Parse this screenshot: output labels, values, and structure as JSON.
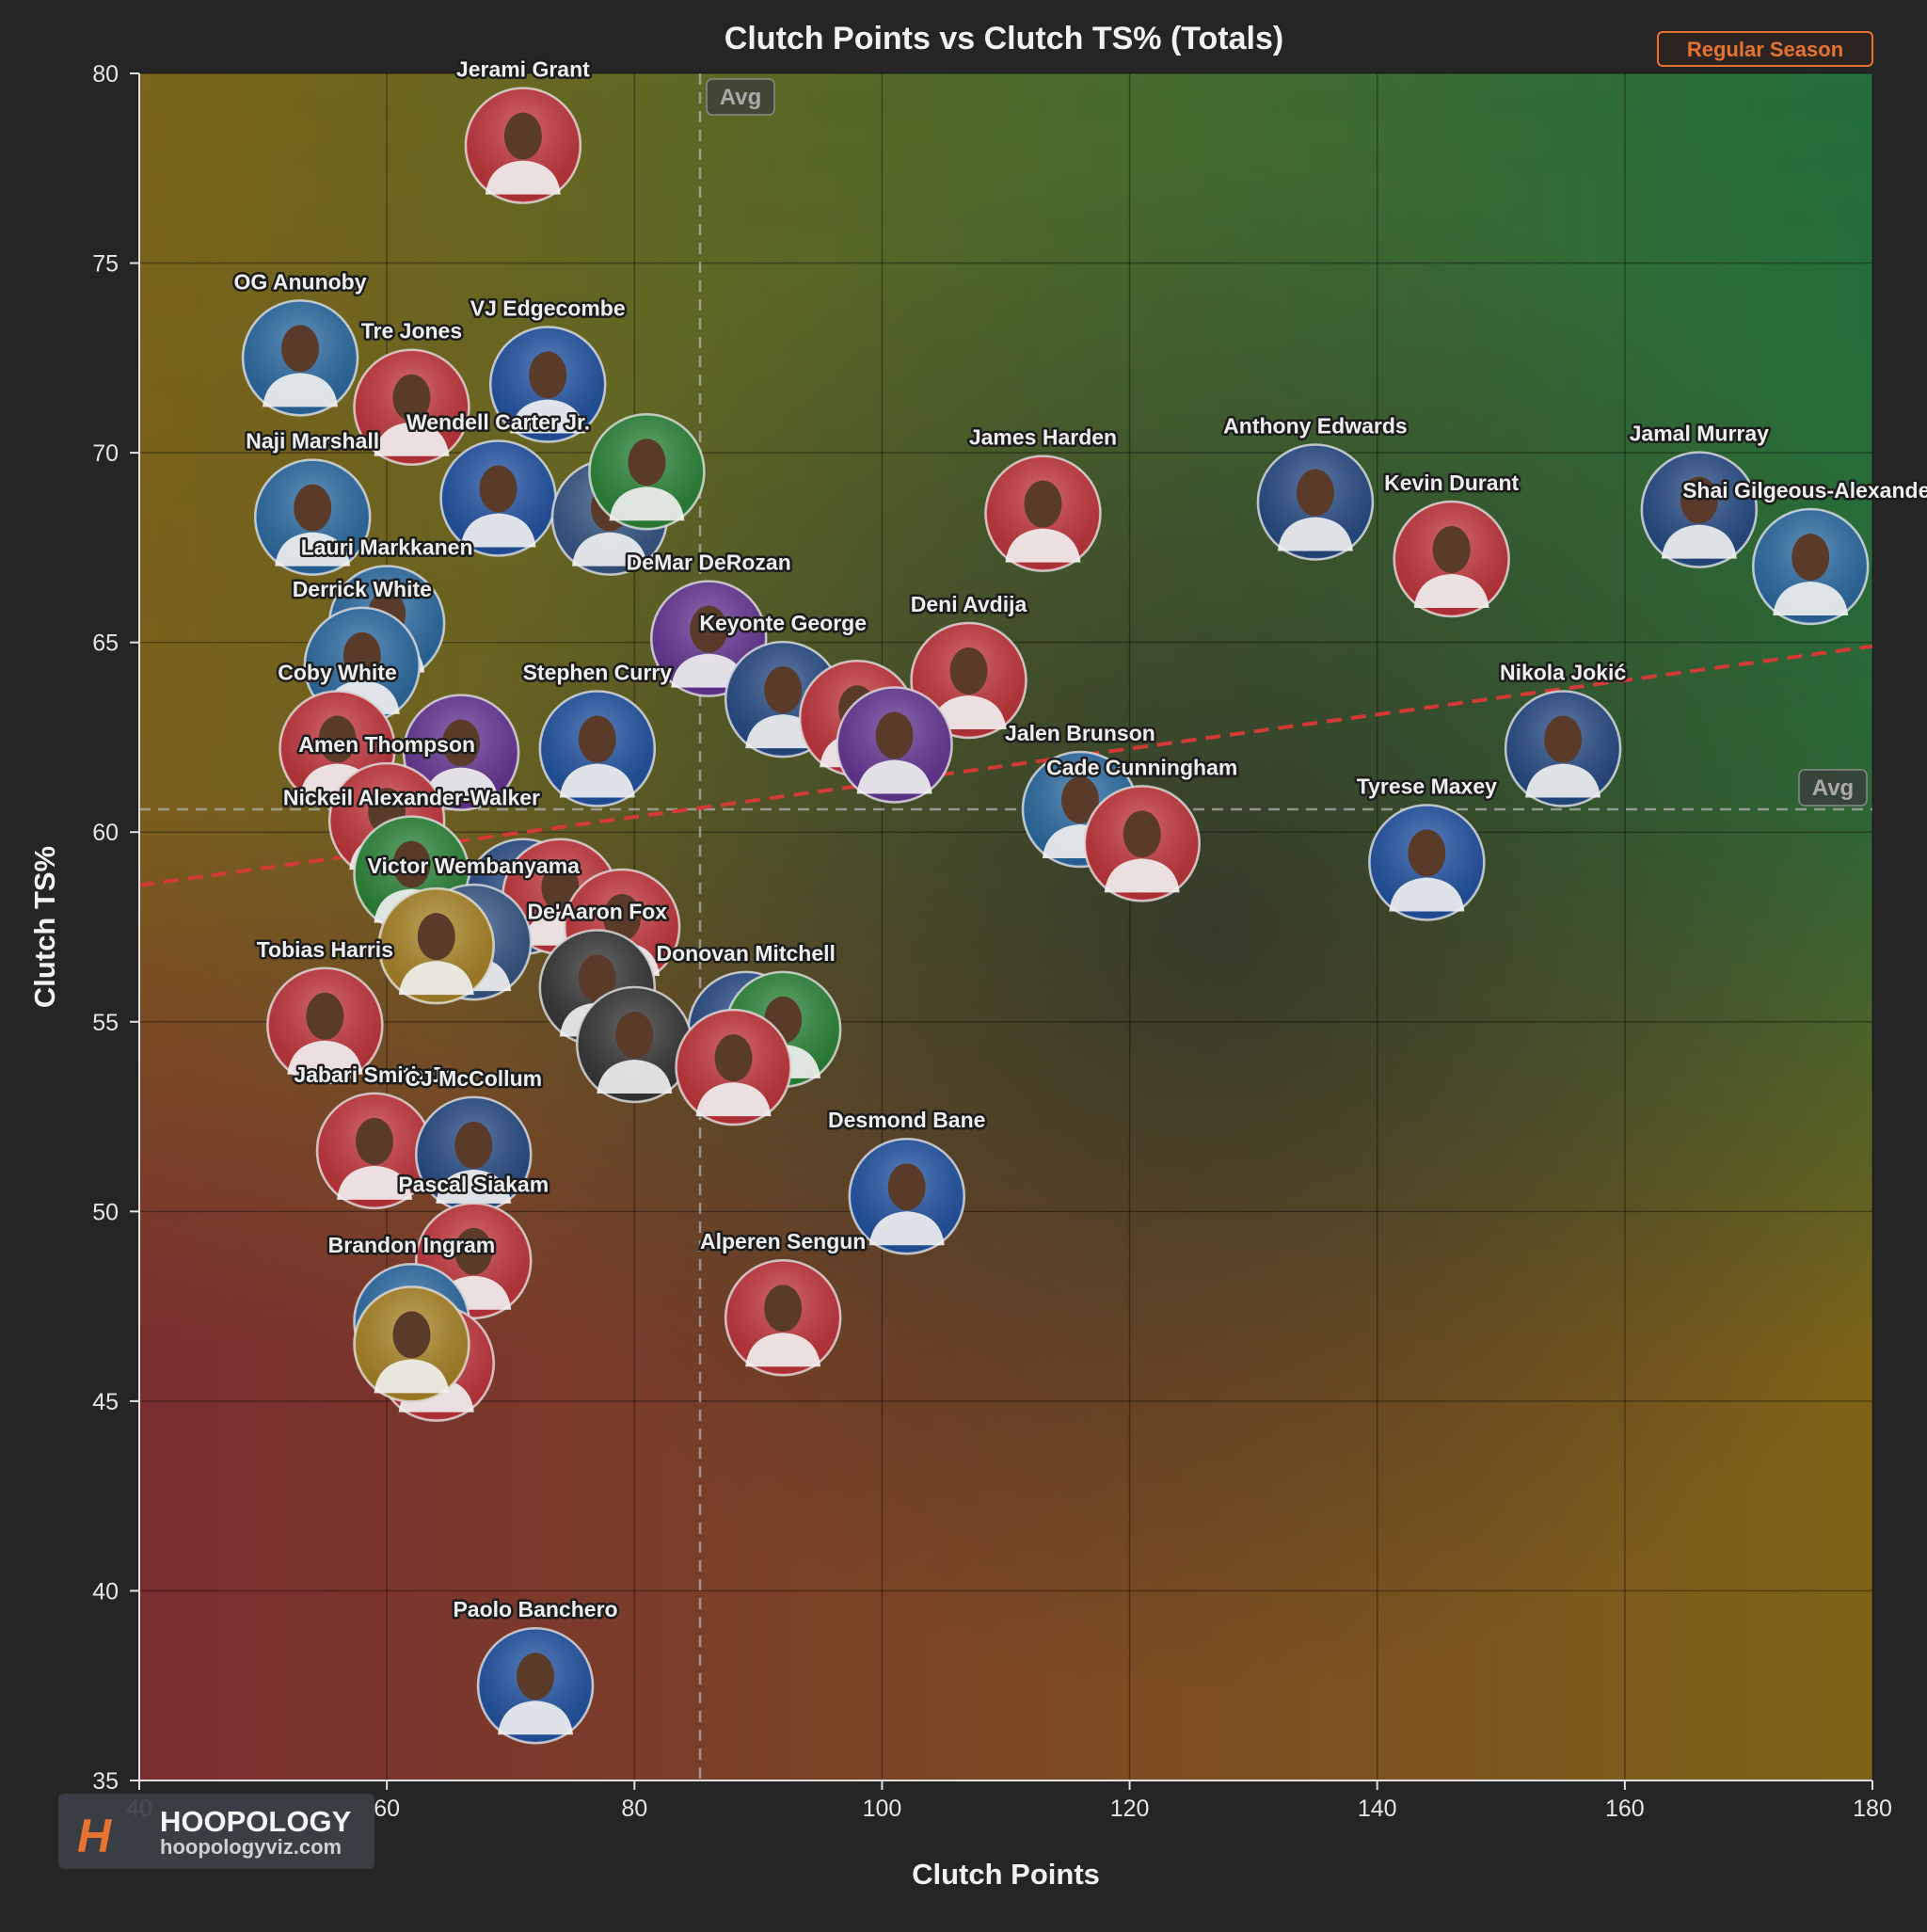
{
  "chart_data": {
    "type": "scatter",
    "title": "Clutch Points vs Clutch TS% (Totals)",
    "xlabel": "Clutch Points",
    "ylabel": "Clutch TS%",
    "xlim": [
      40,
      180
    ],
    "ylim": [
      35,
      80
    ],
    "xticks": [
      "40",
      "60",
      "80",
      "100",
      "120",
      "140",
      "160",
      "180"
    ],
    "yticks": [
      "35",
      "40",
      "45",
      "50",
      "55",
      "60",
      "65",
      "70",
      "75",
      "80"
    ],
    "grid": true,
    "season_filter": "Regular Season",
    "avg_label": "Avg",
    "avg_x": 85.3,
    "avg_y": 60.6,
    "trendline": {
      "x": [
        40,
        180
      ],
      "y": [
        58.6,
        64.9
      ]
    },
    "points": [
      {
        "name": "Jerami Grant",
        "x": 71,
        "y": 78.1,
        "color": "#c8393f"
      },
      {
        "name": "OG Anunoby",
        "x": 53,
        "y": 72.5,
        "color": "#2f6fa8"
      },
      {
        "name": "Tre Jones",
        "x": 62,
        "y": 71.2,
        "color": "#c8393f"
      },
      {
        "name": "VJ Edgecombe",
        "x": 73,
        "y": 71.8,
        "color": "#2557a8"
      },
      {
        "name": "Wendell Carter Jr.",
        "x": 69,
        "y": 68.8,
        "color": "#2557a8"
      },
      {
        "name": "",
        "x": 78,
        "y": 68.3,
        "color": "#3a5a8a"
      },
      {
        "name": "",
        "x": 81,
        "y": 69.5,
        "color": "#2f8a3c"
      },
      {
        "name": "Naji Marshall",
        "x": 54,
        "y": 68.3,
        "color": "#2f6fa8"
      },
      {
        "name": "Anthony Edwards",
        "x": 135,
        "y": 68.7,
        "color": "#2a4f8a"
      },
      {
        "name": "James Harden",
        "x": 113,
        "y": 68.4,
        "color": "#c8393f"
      },
      {
        "name": "Kevin Durant",
        "x": 146,
        "y": 67.2,
        "color": "#c8393f"
      },
      {
        "name": "Jamal Murray",
        "x": 166,
        "y": 68.5,
        "color": "#2a4f8a"
      },
      {
        "name": "Shai Gilgeous-Alexander",
        "x": 175,
        "y": 67.0,
        "color": "#2f6fa8"
      },
      {
        "name": "DeMar DeRozan",
        "x": 86,
        "y": 65.1,
        "color": "#6a3a9a"
      },
      {
        "name": "Lauri Markkanen",
        "x": 60,
        "y": 65.5,
        "color": "#2f6fa8"
      },
      {
        "name": "Derrick White",
        "x": 58,
        "y": 64.4,
        "color": "#2f6fa8"
      },
      {
        "name": "Deni Avdija",
        "x": 107,
        "y": 64.0,
        "color": "#c8393f"
      },
      {
        "name": "Keyonte George",
        "x": 92,
        "y": 63.5,
        "color": "#2a4f8a"
      },
      {
        "name": "",
        "x": 98,
        "y": 63.0,
        "color": "#c8393f"
      },
      {
        "name": "",
        "x": 101,
        "y": 62.3,
        "color": "#6a3a9a"
      },
      {
        "name": "Stephen Curry",
        "x": 77,
        "y": 62.2,
        "color": "#2557a8"
      },
      {
        "name": "Coby White",
        "x": 56,
        "y": 62.2,
        "color": "#c8393f"
      },
      {
        "name": "",
        "x": 66,
        "y": 62.1,
        "color": "#6a3a9a"
      },
      {
        "name": "Nikola Jokić",
        "x": 155,
        "y": 62.2,
        "color": "#2a4f8a"
      },
      {
        "name": "Jalen Brunson",
        "x": 116,
        "y": 60.6,
        "color": "#2f6fa8"
      },
      {
        "name": "Cade Cunningham",
        "x": 121,
        "y": 59.7,
        "color": "#c8393f"
      },
      {
        "name": "Amen Thompson",
        "x": 60,
        "y": 60.3,
        "color": "#c8393f"
      },
      {
        "name": "Tyrese Maxey",
        "x": 144,
        "y": 59.2,
        "color": "#2557a8"
      },
      {
        "name": "Nickeil Alexander-Walker",
        "x": 62,
        "y": 58.9,
        "color": "#2f8a3c"
      },
      {
        "name": "",
        "x": 71,
        "y": 58.3,
        "color": "#2a4f8a"
      },
      {
        "name": "",
        "x": 74,
        "y": 58.3,
        "color": "#c8393f"
      },
      {
        "name": "Victor Wembanyama",
        "x": 67,
        "y": 57.1,
        "color": "#3a5a8a"
      },
      {
        "name": "",
        "x": 64,
        "y": 57.0,
        "color": "#b08a2a"
      },
      {
        "name": "",
        "x": 79,
        "y": 57.5,
        "color": "#c8393f"
      },
      {
        "name": "De'Aaron Fox",
        "x": 77,
        "y": 55.9,
        "color": "#3a3a3a"
      },
      {
        "name": "Tobias Harris",
        "x": 55,
        "y": 54.9,
        "color": "#c8393f"
      },
      {
        "name": "Donovan Mitchell",
        "x": 89,
        "y": 54.8,
        "color": "#2a4f8a"
      },
      {
        "name": "",
        "x": 92,
        "y": 54.8,
        "color": "#2f8a3c"
      },
      {
        "name": "",
        "x": 80,
        "y": 54.4,
        "color": "#3a3a3a"
      },
      {
        "name": "",
        "x": 88,
        "y": 53.8,
        "color": "#c8393f"
      },
      {
        "name": "Jabari Smith Jr.",
        "x": 59,
        "y": 51.6,
        "color": "#c8393f"
      },
      {
        "name": "CJ McCollum",
        "x": 67,
        "y": 51.5,
        "color": "#2a4f8a"
      },
      {
        "name": "Desmond Bane",
        "x": 102,
        "y": 50.4,
        "color": "#2557a8"
      },
      {
        "name": "Pascal Siakam",
        "x": 67,
        "y": 48.7,
        "color": "#c8393f"
      },
      {
        "name": "Alperen Sengun",
        "x": 92,
        "y": 47.2,
        "color": "#c8393f"
      },
      {
        "name": "Brandon Ingram",
        "x": 62,
        "y": 47.1,
        "color": "#2f6fa8"
      },
      {
        "name": "",
        "x": 64,
        "y": 46.0,
        "color": "#c8393f"
      },
      {
        "name": "",
        "x": 62,
        "y": 46.5,
        "color": "#b08a2a"
      },
      {
        "name": "Paolo Banchero",
        "x": 72,
        "y": 37.5,
        "color": "#2557a8"
      }
    ]
  },
  "branding": {
    "logo_mark": "H",
    "name": "HOOPOLOGY",
    "url": "hoopologyviz.com"
  }
}
